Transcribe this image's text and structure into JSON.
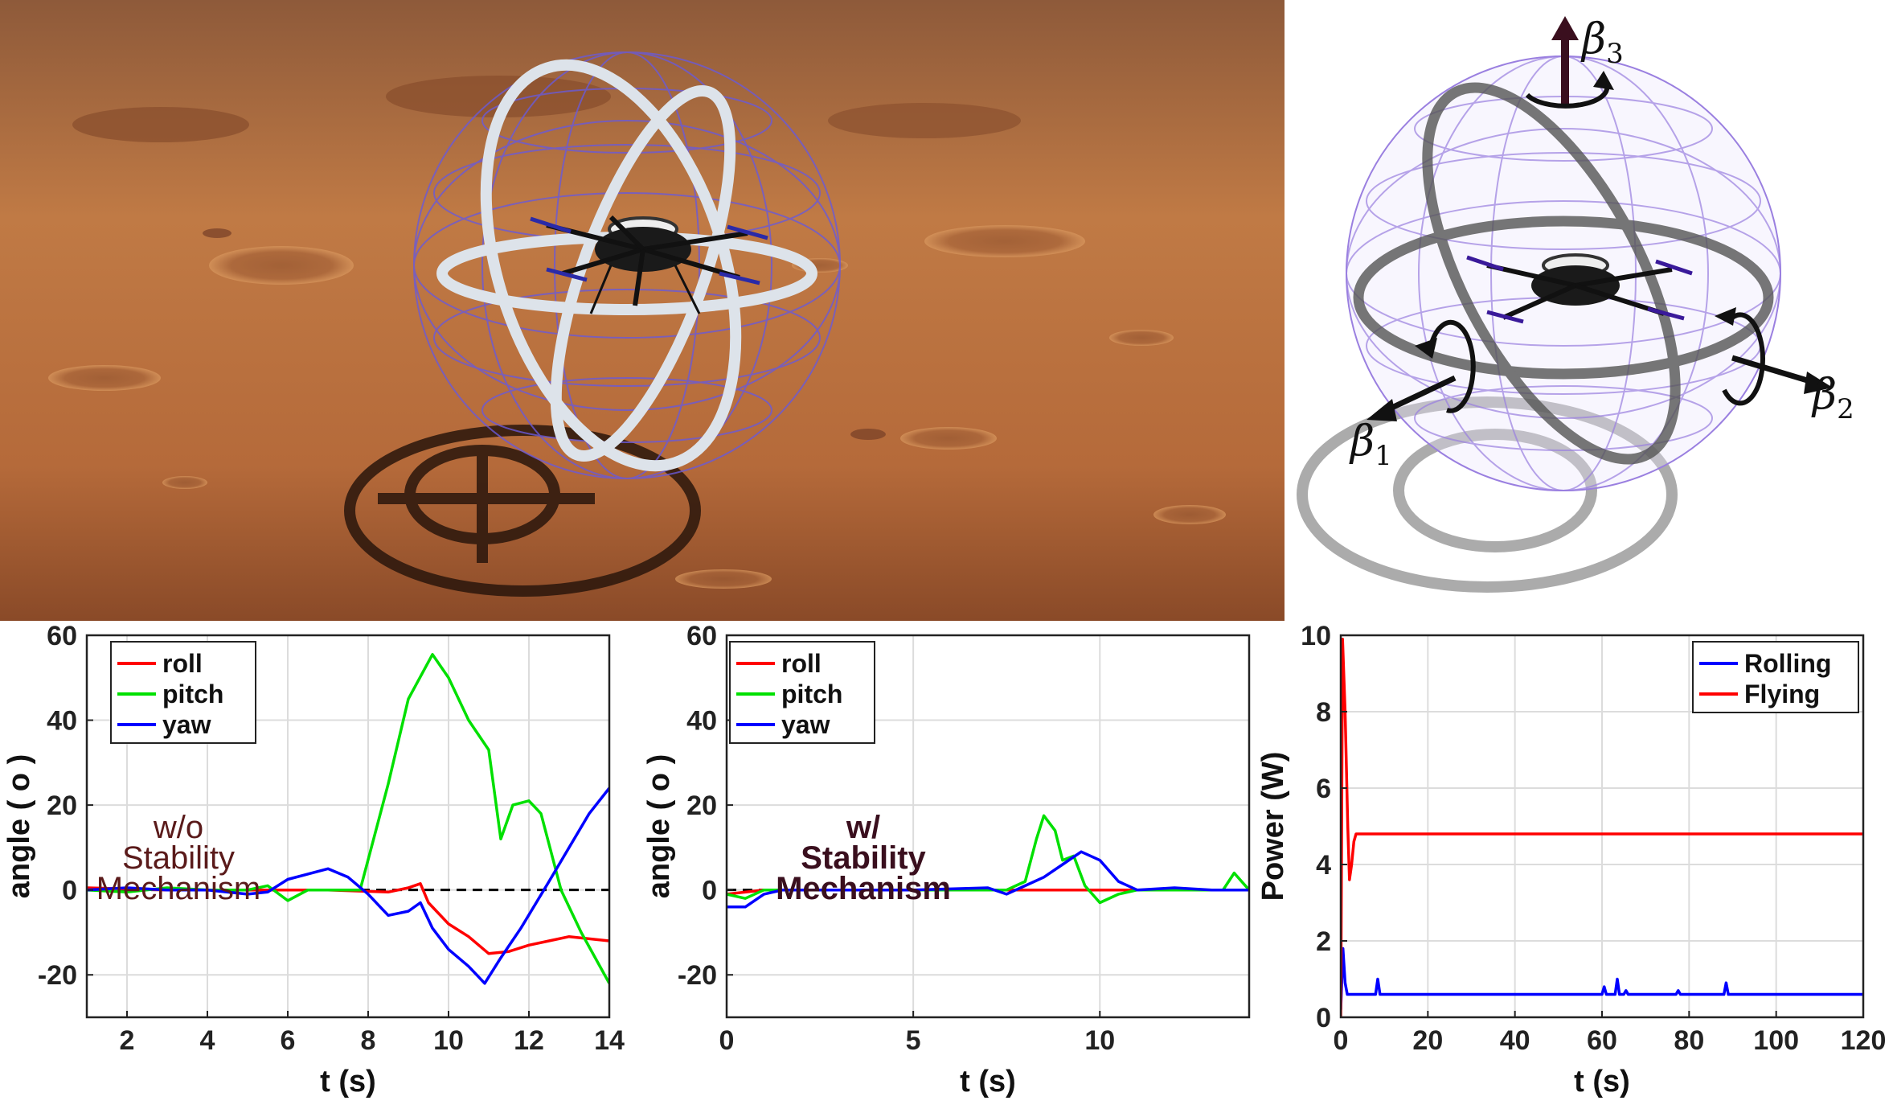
{
  "illustration": {
    "scene_icon": "drone-in-spherical-cage-on-mars",
    "axis_labels": [
      {
        "symbol": "β",
        "subscript": "3"
      },
      {
        "symbol": "β",
        "subscript": "2"
      },
      {
        "symbol": "β",
        "subscript": "1"
      }
    ],
    "colors": {
      "mars": "#b56a3a",
      "cage": "#8a6fd6",
      "axis_arrow": "#3a0f1e"
    }
  },
  "chart_data": [
    {
      "type": "line",
      "xlabel": "t (s)",
      "ylabel": "angle ( o )",
      "xlim": [
        1,
        14
      ],
      "ylim": [
        -30,
        60
      ],
      "xticks": [
        2,
        4,
        6,
        8,
        10,
        12,
        14
      ],
      "yticks": [
        -20,
        0,
        20,
        40,
        60
      ],
      "grid": true,
      "legend_position": "top-left",
      "annotation": [
        "w/o",
        "Stability",
        "Mechanism"
      ],
      "annotation_color": "#5a1a1a",
      "zero_line": "dashed",
      "series": [
        {
          "name": "roll",
          "color": "#ff0000",
          "points": [
            [
              1,
              0.5
            ],
            [
              3,
              0
            ],
            [
              5,
              0
            ],
            [
              7,
              0
            ],
            [
              8.5,
              -0.5
            ],
            [
              9,
              0.5
            ],
            [
              9.3,
              1.5
            ],
            [
              9.5,
              -3
            ],
            [
              10,
              -8
            ],
            [
              10.5,
              -11
            ],
            [
              11,
              -15
            ],
            [
              11.5,
              -14.5
            ],
            [
              12,
              -13
            ],
            [
              12.5,
              -12
            ],
            [
              13,
              -11
            ],
            [
              14,
              -12
            ]
          ]
        },
        {
          "name": "pitch",
          "color": "#00e000",
          "points": [
            [
              1,
              0
            ],
            [
              2,
              -0.5
            ],
            [
              3,
              0.5
            ],
            [
              4,
              0
            ],
            [
              5,
              0
            ],
            [
              5.5,
              1
            ],
            [
              6,
              -2.5
            ],
            [
              6.5,
              0
            ],
            [
              7,
              0
            ],
            [
              7.8,
              0
            ],
            [
              8.5,
              25
            ],
            [
              9,
              45
            ],
            [
              9.6,
              55.5
            ],
            [
              10,
              50
            ],
            [
              10.5,
              40
            ],
            [
              11,
              33
            ],
            [
              11.3,
              12
            ],
            [
              11.6,
              20
            ],
            [
              12,
              21
            ],
            [
              12.3,
              18
            ],
            [
              12.8,
              0
            ],
            [
              13.3,
              -10
            ],
            [
              14,
              -22
            ]
          ]
        },
        {
          "name": "yaw",
          "color": "#0000ff",
          "points": [
            [
              1,
              0
            ],
            [
              2,
              0.5
            ],
            [
              3,
              0
            ],
            [
              4,
              0
            ],
            [
              5,
              -1
            ],
            [
              5.5,
              -0.5
            ],
            [
              6,
              2.5
            ],
            [
              7,
              5
            ],
            [
              7.5,
              3
            ],
            [
              8,
              -1
            ],
            [
              8.5,
              -6
            ],
            [
              9,
              -5
            ],
            [
              9.3,
              -3
            ],
            [
              9.6,
              -9
            ],
            [
              10,
              -14
            ],
            [
              10.5,
              -18
            ],
            [
              10.9,
              -22
            ],
            [
              11.3,
              -16
            ],
            [
              11.8,
              -9
            ],
            [
              12.5,
              2
            ],
            [
              13,
              10
            ],
            [
              13.5,
              18
            ],
            [
              14,
              24
            ]
          ]
        }
      ]
    },
    {
      "type": "line",
      "xlabel": "t (s)",
      "ylabel": "angle ( o )",
      "xlim": [
        0,
        14
      ],
      "ylim": [
        -30,
        60
      ],
      "xticks": [
        0,
        5,
        10
      ],
      "yticks": [
        -20,
        0,
        20,
        40,
        60
      ],
      "grid": true,
      "legend_position": "top-left",
      "annotation": [
        "w/",
        "Stability",
        "Mechanism"
      ],
      "annotation_color": "#3a0f1e",
      "zero_line": "dashed",
      "series": [
        {
          "name": "roll",
          "color": "#ff0000",
          "points": [
            [
              0,
              -1
            ],
            [
              1,
              0
            ],
            [
              3,
              0
            ],
            [
              5,
              0
            ],
            [
              7,
              0
            ],
            [
              8,
              0
            ],
            [
              9,
              0
            ],
            [
              10,
              0
            ],
            [
              12,
              0
            ],
            [
              14,
              0
            ]
          ]
        },
        {
          "name": "pitch",
          "color": "#00e000",
          "points": [
            [
              0,
              -1
            ],
            [
              0.5,
              -2
            ],
            [
              1,
              0
            ],
            [
              2,
              0
            ],
            [
              4,
              0
            ],
            [
              6,
              0
            ],
            [
              7.5,
              0
            ],
            [
              8,
              2
            ],
            [
              8.3,
              12
            ],
            [
              8.5,
              17.5
            ],
            [
              8.8,
              14
            ],
            [
              9,
              7
            ],
            [
              9.3,
              8
            ],
            [
              9.6,
              1
            ],
            [
              10,
              -3
            ],
            [
              10.5,
              -1
            ],
            [
              11,
              0
            ],
            [
              12,
              0
            ],
            [
              13.3,
              0
            ],
            [
              13.6,
              4
            ],
            [
              14,
              0
            ]
          ]
        },
        {
          "name": "yaw",
          "color": "#0000ff",
          "points": [
            [
              0,
              -4
            ],
            [
              0.5,
              -4
            ],
            [
              1,
              -1
            ],
            [
              1.5,
              0
            ],
            [
              3,
              0
            ],
            [
              5,
              0
            ],
            [
              7,
              0.5
            ],
            [
              7.5,
              -1
            ],
            [
              8,
              1
            ],
            [
              8.5,
              3
            ],
            [
              9,
              6
            ],
            [
              9.5,
              9
            ],
            [
              10,
              7
            ],
            [
              10.5,
              2
            ],
            [
              11,
              0
            ],
            [
              12,
              0.5
            ],
            [
              13,
              0
            ],
            [
              14,
              0
            ]
          ]
        }
      ]
    },
    {
      "type": "line",
      "xlabel": "t (s)",
      "ylabel": "Power (W)",
      "xlim": [
        0,
        120
      ],
      "ylim": [
        0,
        10
      ],
      "xticks": [
        0,
        20,
        40,
        60,
        80,
        100,
        120
      ],
      "yticks": [
        0,
        2,
        4,
        6,
        8,
        10
      ],
      "grid": true,
      "legend_position": "top-right",
      "series": [
        {
          "name": "Rolling",
          "color": "#0000ff",
          "points": [
            [
              0,
              0.2
            ],
            [
              0.5,
              1.8
            ],
            [
              1,
              0.9
            ],
            [
              1.5,
              0.6
            ],
            [
              8,
              0.6
            ],
            [
              8.5,
              1
            ],
            [
              9,
              0.6
            ],
            [
              60,
              0.6
            ],
            [
              60.5,
              0.8
            ],
            [
              61,
              0.6
            ],
            [
              63,
              0.6
            ],
            [
              63.5,
              1
            ],
            [
              64,
              0.6
            ],
            [
              65,
              0.6
            ],
            [
              65.5,
              0.7
            ],
            [
              66,
              0.6
            ],
            [
              77,
              0.6
            ],
            [
              77.5,
              0.7
            ],
            [
              78,
              0.6
            ],
            [
              88,
              0.6
            ],
            [
              88.5,
              0.9
            ],
            [
              89,
              0.6
            ],
            [
              120,
              0.6
            ]
          ]
        },
        {
          "name": "Flying",
          "color": "#ff0000",
          "points": [
            [
              0,
              0
            ],
            [
              0.4,
              9.9
            ],
            [
              1,
              8
            ],
            [
              1.6,
              5
            ],
            [
              2,
              3.6
            ],
            [
              2.5,
              4
            ],
            [
              3,
              4.6
            ],
            [
              3.5,
              4.8
            ],
            [
              120,
              4.8
            ]
          ]
        }
      ]
    }
  ]
}
